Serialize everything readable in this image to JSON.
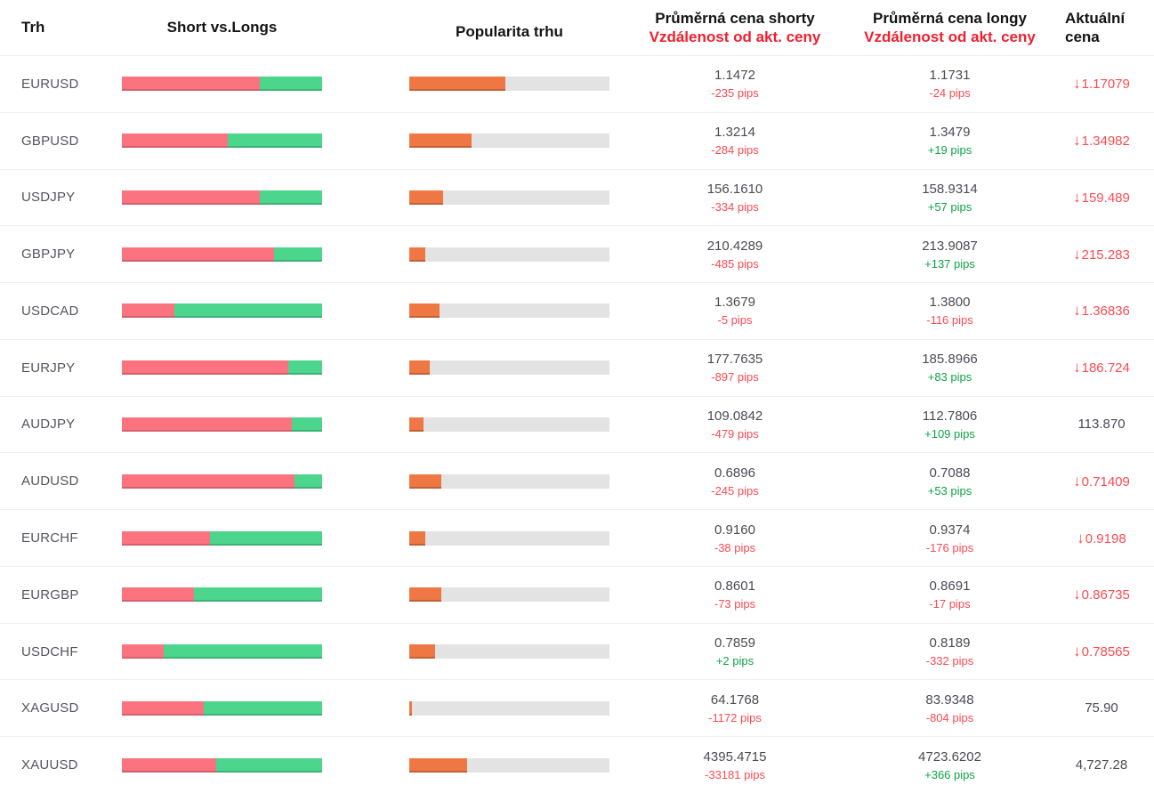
{
  "header": {
    "trh": "Trh",
    "short_vs_longs": "Short vs.Longs",
    "popularita": "Popularita trhu",
    "shorts_line1": "Průměrná cena shorty",
    "shorts_sub": "Vzdálenost od akt. ceny",
    "longs_line1": "Průměrná cena longy",
    "longs_sub": "Vzdálenost od akt. ceny",
    "current_line1": "Aktuální",
    "current_line2": "cena"
  },
  "colors": {
    "shorts_bar": "#fc7380",
    "longs_bar": "#4bd58d",
    "popularity_bar": "#ee7743",
    "popularity_track": "#e3e3e4",
    "negative_text": "#fb4a52",
    "positive_text": "#0fa348",
    "header_red": "#f0202f",
    "current_down": "#fc4b52"
  },
  "icons": {
    "down_arrow": "↓"
  },
  "rows": [
    {
      "market": "EURUSD",
      "short_pct": 69,
      "popularity_pct": 48,
      "short_price": "1.1472",
      "short_pips": "-235 pips",
      "long_price": "1.1731",
      "long_pips": "-24 pips",
      "current": "1.17079",
      "current_arrow": true
    },
    {
      "market": "GBPUSD",
      "short_pct": 53,
      "popularity_pct": 31,
      "short_price": "1.3214",
      "short_pips": "-284 pips",
      "long_price": "1.3479",
      "long_pips": "+19 pips",
      "current": "1.34982",
      "current_arrow": true
    },
    {
      "market": "USDJPY",
      "short_pct": 69,
      "popularity_pct": 17,
      "short_price": "156.1610",
      "short_pips": "-334 pips",
      "long_price": "158.9314",
      "long_pips": "+57 pips",
      "current": "159.489",
      "current_arrow": true
    },
    {
      "market": "GBPJPY",
      "short_pct": 76,
      "popularity_pct": 8,
      "short_price": "210.4289",
      "short_pips": "-485 pips",
      "long_price": "213.9087",
      "long_pips": "+137 pips",
      "current": "215.283",
      "current_arrow": true
    },
    {
      "market": "USDCAD",
      "short_pct": 26,
      "popularity_pct": 15,
      "short_price": "1.3679",
      "short_pips": "-5 pips",
      "long_price": "1.3800",
      "long_pips": "-116 pips",
      "current": "1.36836",
      "current_arrow": true
    },
    {
      "market": "EURJPY",
      "short_pct": 83,
      "popularity_pct": 10,
      "short_price": "177.7635",
      "short_pips": "-897 pips",
      "long_price": "185.8966",
      "long_pips": "+83 pips",
      "current": "186.724",
      "current_arrow": true
    },
    {
      "market": "AUDJPY",
      "short_pct": 85,
      "popularity_pct": 7,
      "short_price": "109.0842",
      "short_pips": "-479 pips",
      "long_price": "112.7806",
      "long_pips": "+109 pips",
      "current": "113.870",
      "current_arrow": false
    },
    {
      "market": "AUDUSD",
      "short_pct": 86,
      "popularity_pct": 16,
      "short_price": "0.6896",
      "short_pips": "-245 pips",
      "long_price": "0.7088",
      "long_pips": "+53 pips",
      "current": "0.71409",
      "current_arrow": true
    },
    {
      "market": "EURCHF",
      "short_pct": 44,
      "popularity_pct": 8,
      "short_price": "0.9160",
      "short_pips": "-38 pips",
      "long_price": "0.9374",
      "long_pips": "-176 pips",
      "current": "0.9198",
      "current_arrow": true
    },
    {
      "market": "EURGBP",
      "short_pct": 36,
      "popularity_pct": 16,
      "short_price": "0.8601",
      "short_pips": "-73 pips",
      "long_price": "0.8691",
      "long_pips": "-17 pips",
      "current": "0.86735",
      "current_arrow": true
    },
    {
      "market": "USDCHF",
      "short_pct": 21,
      "popularity_pct": 13,
      "short_price": "0.7859",
      "short_pips": "+2 pips",
      "long_price": "0.8189",
      "long_pips": "-332 pips",
      "current": "0.78565",
      "current_arrow": true
    },
    {
      "market": "XAGUSD",
      "short_pct": 41,
      "popularity_pct": 1.5,
      "short_price": "64.1768",
      "short_pips": "-1172 pips",
      "long_price": "83.9348",
      "long_pips": "-804 pips",
      "current": "75.90",
      "current_arrow": false
    },
    {
      "market": "XAUUSD",
      "short_pct": 47,
      "popularity_pct": 29,
      "short_price": "4395.4715",
      "short_pips": "-33181 pips",
      "long_price": "4723.6202",
      "long_pips": "+366 pips",
      "current": "4,727.28",
      "current_arrow": false
    }
  ]
}
